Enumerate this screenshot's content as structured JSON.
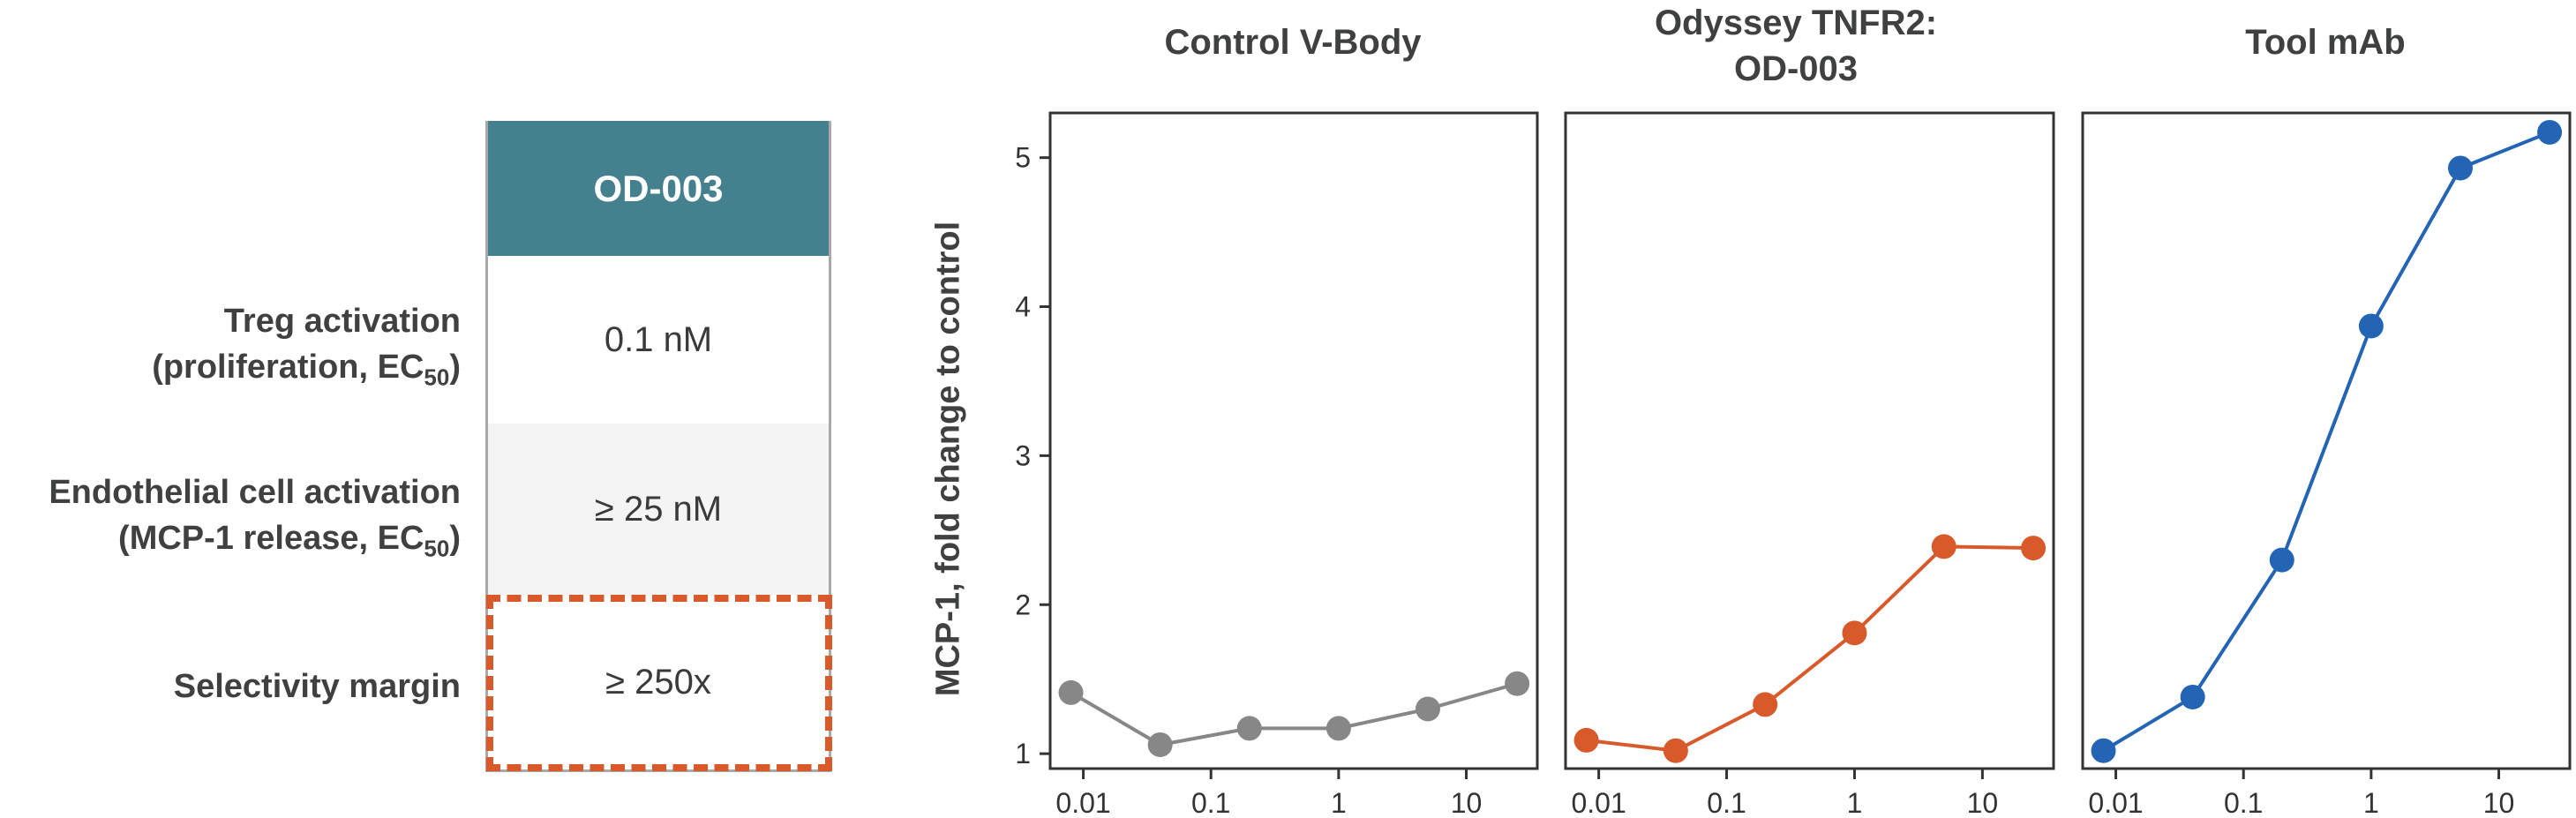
{
  "table": {
    "header": "OD-003",
    "rows": [
      {
        "label_line1": "Treg activation",
        "label_line2_main": "(proliferation, EC",
        "label_line2_sub": "50",
        "label_line2_end": ")",
        "value": "0.1 nM"
      },
      {
        "label_line1": "Endothelial cell activation",
        "label_line2_main": "(MCP-1 release, EC",
        "label_line2_sub": "50",
        "label_line2_end": ")",
        "value": "≥ 25 nM"
      },
      {
        "label": "Selectivity margin",
        "value": "≥ 250x"
      }
    ],
    "highlight_color": "#d85a2b",
    "header_color": "#44808e"
  },
  "chart_data": [
    {
      "type": "line",
      "title_lines": [
        "Control V-Body"
      ],
      "ylabel": "MCP-1, fold change to control",
      "xscale": "log",
      "xticks": [
        "0.01",
        "0.1",
        "1",
        "10"
      ],
      "yticks": [
        "1",
        "2",
        "3",
        "4",
        "5"
      ],
      "ylim": [
        0.9,
        5.3
      ],
      "color": "#878787",
      "x": [
        0.008,
        0.04,
        0.2,
        1,
        5,
        25
      ],
      "y": [
        1.41,
        1.06,
        1.17,
        1.17,
        1.3,
        1.47
      ]
    },
    {
      "type": "line",
      "title_lines": [
        "Odyssey TNFR2:",
        "OD-003"
      ],
      "xscale": "log",
      "xticks": [
        "0.01",
        "0.1",
        "1",
        "10"
      ],
      "ylim": [
        0.9,
        5.3
      ],
      "color": "#d85a2b",
      "x": [
        0.008,
        0.04,
        0.2,
        1,
        5,
        25
      ],
      "y": [
        1.09,
        1.02,
        1.33,
        1.81,
        2.39,
        2.38
      ]
    },
    {
      "type": "line",
      "title_lines": [
        "Tool mAb"
      ],
      "xscale": "log",
      "xticks": [
        "0.01",
        "0.1",
        "1",
        "10"
      ],
      "ylim": [
        0.9,
        5.3
      ],
      "color": "#2464b4",
      "x": [
        0.008,
        0.04,
        0.2,
        1,
        5,
        25
      ],
      "y": [
        1.02,
        1.38,
        2.3,
        3.87,
        4.93,
        5.17
      ]
    }
  ]
}
